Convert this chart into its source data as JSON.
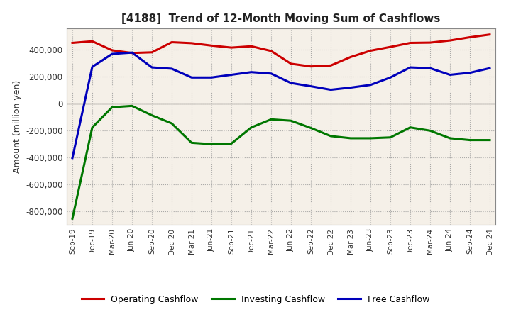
{
  "title": "[4188]  Trend of 12-Month Moving Sum of Cashflows",
  "ylabel": "Amount (million yen)",
  "ylim": [
    -900000,
    560000
  ],
  "yticks": [
    -800000,
    -600000,
    -400000,
    -200000,
    0,
    200000,
    400000
  ],
  "background_color": "#ffffff",
  "plot_bg_color": "#f5f0e8",
  "grid_color": "#999999",
  "x_labels": [
    "Sep-19",
    "Dec-19",
    "Mar-20",
    "Jun-20",
    "Sep-20",
    "Dec-20",
    "Mar-21",
    "Jun-21",
    "Sep-21",
    "Dec-21",
    "Mar-22",
    "Jun-22",
    "Sep-22",
    "Dec-22",
    "Mar-23",
    "Jun-23",
    "Sep-23",
    "Dec-23",
    "Mar-24",
    "Jun-24",
    "Sep-24",
    "Dec-24"
  ],
  "operating": [
    450000,
    462000,
    395000,
    375000,
    380000,
    455000,
    448000,
    430000,
    415000,
    425000,
    390000,
    295000,
    275000,
    282000,
    345000,
    392000,
    420000,
    450000,
    452000,
    468000,
    492000,
    512000
  ],
  "investing": [
    -855000,
    -178000,
    -28000,
    -18000,
    -88000,
    -148000,
    -292000,
    -302000,
    -298000,
    -178000,
    -118000,
    -128000,
    -182000,
    -242000,
    -258000,
    -258000,
    -252000,
    -178000,
    -202000,
    -258000,
    -272000,
    -272000
  ],
  "free": [
    -405000,
    272000,
    368000,
    378000,
    268000,
    258000,
    193000,
    193000,
    213000,
    233000,
    222000,
    152000,
    128000,
    102000,
    118000,
    138000,
    193000,
    268000,
    262000,
    213000,
    228000,
    262000
  ],
  "op_color": "#cc0000",
  "inv_color": "#007700",
  "free_color": "#0000bb",
  "linewidth": 2.2,
  "legend_labels": [
    "Operating Cashflow",
    "Investing Cashflow",
    "Free Cashflow"
  ]
}
